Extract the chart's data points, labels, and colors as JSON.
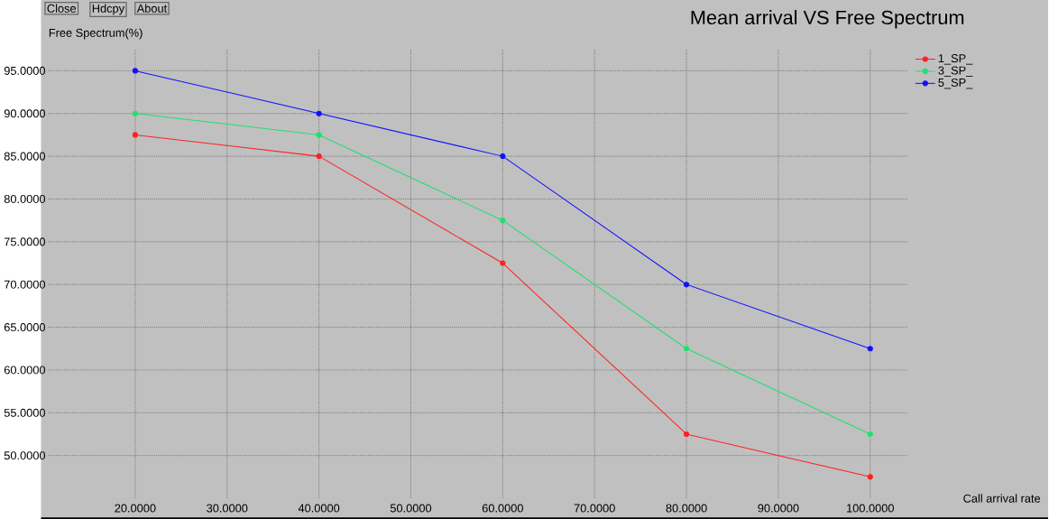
{
  "chart_data": {
    "type": "line",
    "title": "Mean arrival VS Free Spectrum",
    "xlabel": "Call arrival rate",
    "ylabel": "Free Spectrum(%)",
    "annotations": [
      "Close",
      "Hdcpy",
      "About"
    ],
    "x": [
      20,
      40,
      60,
      80,
      100
    ],
    "series": [
      {
        "name": "1_SP_",
        "color": "#ff2020",
        "values": [
          87.5,
          85,
          72.5,
          52.5,
          47.5
        ]
      },
      {
        "name": "3_SP_",
        "color": "#20e070",
        "values": [
          90,
          87.5,
          77.5,
          62.5,
          52.5
        ]
      },
      {
        "name": "5_SP_",
        "color": "#1010ff",
        "values": [
          95,
          90,
          85,
          70,
          62.5
        ]
      }
    ],
    "xlim": [
      10.5,
      104
    ],
    "ylim": [
      45,
      97.5
    ],
    "xticks": [
      {
        "value": 20,
        "label": "20.0000"
      },
      {
        "value": 30,
        "label": "30.0000"
      },
      {
        "value": 40,
        "label": "40.0000"
      },
      {
        "value": 50,
        "label": "50.0000"
      },
      {
        "value": 60,
        "label": "60.0000"
      },
      {
        "value": 70,
        "label": "70.0000"
      },
      {
        "value": 80,
        "label": "80.0000"
      },
      {
        "value": 90,
        "label": "90.0000"
      },
      {
        "value": 100,
        "label": "100.0000"
      }
    ],
    "yticks": [
      {
        "value": 50,
        "label": "50.0000"
      },
      {
        "value": 55,
        "label": "55.0000"
      },
      {
        "value": 60,
        "label": "60.0000"
      },
      {
        "value": 65,
        "label": "65.0000"
      },
      {
        "value": 70,
        "label": "70.0000"
      },
      {
        "value": 75,
        "label": "75.0000"
      },
      {
        "value": 80,
        "label": "80.0000"
      },
      {
        "value": 85,
        "label": "85.0000"
      },
      {
        "value": 90,
        "label": "90.0000"
      },
      {
        "value": 95,
        "label": "95.0000"
      }
    ],
    "grid": true,
    "legend": "top right",
    "marker": "circle",
    "line_style": "solid"
  }
}
